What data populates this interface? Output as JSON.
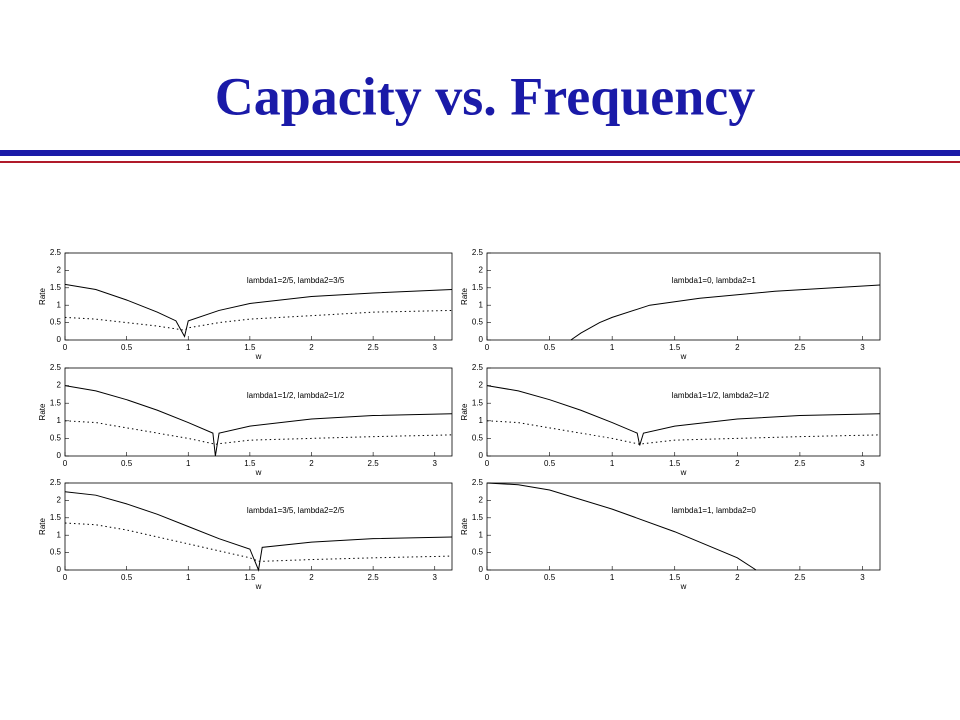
{
  "title": "Capacity vs. Frequency",
  "chart_data": [
    {
      "type": "line",
      "annotation": "lambda1=2/5, lambda2=3/5",
      "xlabel": "w",
      "ylabel": "Rate",
      "xlim": [
        0,
        3.14
      ],
      "ylim": [
        0,
        2.5
      ],
      "xticks": [
        0,
        0.5,
        1,
        1.5,
        2,
        2.5,
        3
      ],
      "yticks": [
        0,
        0.5,
        1,
        1.5,
        2,
        2.5
      ],
      "x": [
        0,
        0.25,
        0.5,
        0.75,
        0.9,
        0.97,
        1.0,
        1.25,
        1.5,
        2,
        2.5,
        3.14
      ],
      "series": [
        {
          "color": "#000000",
          "dash": "none",
          "values": [
            1.6,
            1.45,
            1.15,
            0.8,
            0.55,
            0.1,
            0.55,
            0.85,
            1.05,
            1.25,
            1.35,
            1.45
          ]
        },
        {
          "color": "#000000",
          "dash": "1.5 3",
          "values": [
            0.65,
            0.6,
            0.5,
            0.4,
            0.32,
            0.28,
            0.35,
            0.5,
            0.6,
            0.7,
            0.8,
            0.85
          ]
        }
      ]
    },
    {
      "type": "line",
      "annotation": "lambda1=0, lambda2=1",
      "xlabel": "w",
      "ylabel": "Rate",
      "xlim": [
        0,
        3.14
      ],
      "ylim": [
        0,
        2.5
      ],
      "xticks": [
        0,
        0.5,
        1,
        1.5,
        2,
        2.5,
        3
      ],
      "yticks": [
        0,
        0.5,
        1,
        1.5,
        2,
        2.5
      ],
      "x": [
        0.67,
        0.75,
        0.9,
        1.0,
        1.3,
        1.7,
        2.3,
        3.14
      ],
      "series": [
        {
          "color": "#000000",
          "dash": "none",
          "values": [
            0,
            0.2,
            0.5,
            0.65,
            1.0,
            1.2,
            1.4,
            1.58
          ]
        }
      ]
    },
    {
      "type": "line",
      "annotation": "lambda1=1/2, lambda2=1/2",
      "xlabel": "w",
      "ylabel": "Rate",
      "xlim": [
        0,
        3.14
      ],
      "ylim": [
        0,
        2.5
      ],
      "xticks": [
        0,
        0.5,
        1,
        1.5,
        2,
        2.5,
        3
      ],
      "yticks": [
        0,
        0.5,
        1,
        1.5,
        2,
        2.5
      ],
      "x": [
        0,
        0.25,
        0.5,
        0.75,
        1.0,
        1.2,
        1.22,
        1.25,
        1.5,
        2,
        2.5,
        3.14
      ],
      "series": [
        {
          "color": "#000000",
          "dash": "none",
          "values": [
            2.0,
            1.85,
            1.6,
            1.3,
            0.95,
            0.65,
            0.0,
            0.65,
            0.85,
            1.05,
            1.15,
            1.2
          ]
        },
        {
          "color": "#000000",
          "dash": "1.5 3",
          "values": [
            1.0,
            0.95,
            0.8,
            0.65,
            0.5,
            0.35,
            0.33,
            0.35,
            0.45,
            0.5,
            0.55,
            0.6
          ]
        }
      ]
    },
    {
      "type": "line",
      "annotation": "lambda1=1/2, lambda2=1/2",
      "xlabel": "w",
      "ylabel": "Rate",
      "xlim": [
        0,
        3.14
      ],
      "ylim": [
        0,
        2.5
      ],
      "xticks": [
        0,
        0.5,
        1,
        1.5,
        2,
        2.5,
        3
      ],
      "yticks": [
        0,
        0.5,
        1,
        1.5,
        2,
        2.5
      ],
      "x": [
        0,
        0.25,
        0.5,
        0.75,
        1.0,
        1.2,
        1.22,
        1.25,
        1.5,
        2,
        2.5,
        3.14
      ],
      "series": [
        {
          "color": "#000000",
          "dash": "none",
          "values": [
            2.0,
            1.85,
            1.6,
            1.3,
            0.95,
            0.65,
            0.3,
            0.65,
            0.85,
            1.05,
            1.15,
            1.2
          ]
        },
        {
          "color": "#000000",
          "dash": "1.5 3",
          "values": [
            1.0,
            0.95,
            0.8,
            0.65,
            0.5,
            0.35,
            0.33,
            0.35,
            0.45,
            0.5,
            0.55,
            0.6
          ]
        }
      ]
    },
    {
      "type": "line",
      "annotation": "lambda1=3/5, lambda2=2/5",
      "xlabel": "w",
      "ylabel": "Rate",
      "xlim": [
        0,
        3.14
      ],
      "ylim": [
        0,
        2.5
      ],
      "xticks": [
        0,
        0.5,
        1,
        1.5,
        2,
        2.5,
        3
      ],
      "yticks": [
        0,
        0.5,
        1,
        1.5,
        2,
        2.5
      ],
      "x": [
        0,
        0.25,
        0.5,
        0.75,
        1.0,
        1.25,
        1.5,
        1.57,
        1.6,
        2,
        2.5,
        3.14
      ],
      "series": [
        {
          "color": "#000000",
          "dash": "none",
          "values": [
            2.25,
            2.15,
            1.9,
            1.6,
            1.25,
            0.9,
            0.6,
            0.0,
            0.65,
            0.8,
            0.9,
            0.95
          ]
        },
        {
          "color": "#000000",
          "dash": "1.5 3",
          "values": [
            1.35,
            1.3,
            1.15,
            0.95,
            0.75,
            0.55,
            0.35,
            0.25,
            0.25,
            0.3,
            0.35,
            0.4
          ]
        }
      ]
    },
    {
      "type": "line",
      "annotation": "lambda1=1, lambda2=0",
      "xlabel": "w",
      "ylabel": "Rate",
      "xlim": [
        0,
        3.14
      ],
      "ylim": [
        0,
        2.5
      ],
      "xticks": [
        0,
        0.5,
        1,
        1.5,
        2,
        2.5,
        3
      ],
      "yticks": [
        0,
        0.5,
        1,
        1.5,
        2,
        2.5
      ],
      "x": [
        0,
        0.25,
        0.5,
        1,
        1.5,
        2,
        2.15
      ],
      "series": [
        {
          "color": "#000000",
          "dash": "none",
          "values": [
            2.5,
            2.45,
            2.3,
            1.75,
            1.1,
            0.35,
            0
          ]
        }
      ]
    }
  ]
}
